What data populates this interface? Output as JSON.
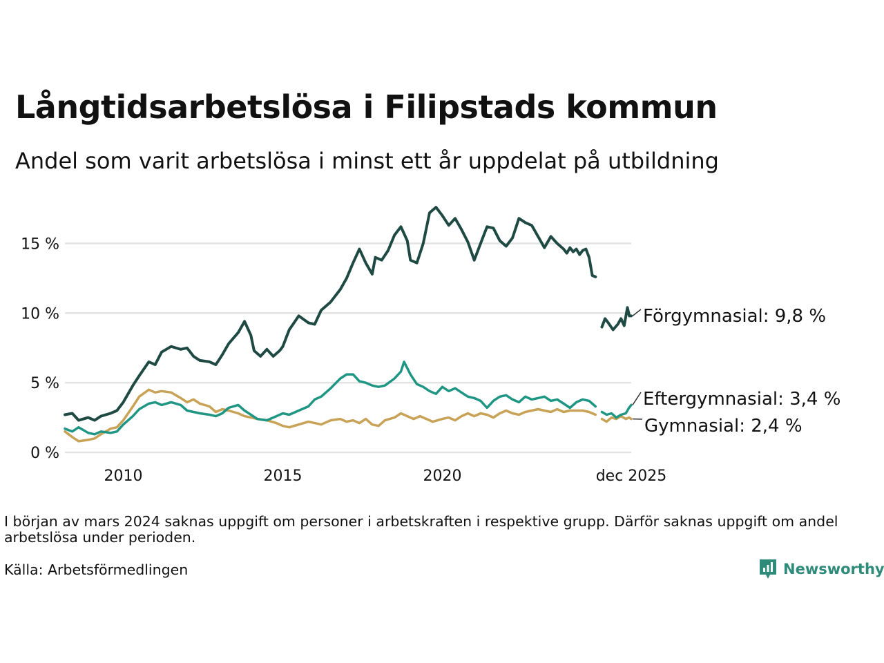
{
  "header": {
    "title": "Långtidsarbetslösa i Filipstads kommun",
    "subtitle": "Andel som varit arbetslösa i minst ett år uppdelat på utbildning"
  },
  "footer": {
    "note": "I början av mars 2024 saknas uppgift om personer i arbetskraften i respektive grupp. Därför saknas uppgift om andel arbetslösa under perioden.",
    "source": "Källa: Arbetsförmedlingen",
    "brand": "Newsworthy"
  },
  "colors": {
    "forgymnasial": "#1f4a43",
    "eftergymnasial": "#1e9683",
    "gymnasial": "#c8a256",
    "grid": "#e3e3e3",
    "brand": "#2e8b7a"
  },
  "chart_data": {
    "type": "line",
    "title": "Långtidsarbetslösa i Filipstads kommun",
    "ylabel": "",
    "xlabel": "",
    "ylim": [
      0,
      18
    ],
    "xlim": [
      2008.17,
      2025.92
    ],
    "gap": [
      2023.9,
      2024.25
    ],
    "y_ticks": [
      {
        "value": 0,
        "label": "0 %"
      },
      {
        "value": 5,
        "label": "5 %"
      },
      {
        "value": 10,
        "label": "10 %"
      },
      {
        "value": 15,
        "label": "15 %"
      }
    ],
    "x_ticks": [
      {
        "value": 2010,
        "label": "2010"
      },
      {
        "value": 2015,
        "label": "2015"
      },
      {
        "value": 2020,
        "label": "2020"
      },
      {
        "value": 2025.92,
        "label": "dec 2025"
      }
    ],
    "series": [
      {
        "name": "Förgymnasial",
        "end_label": "Förgymnasial: 9,8 %",
        "points": [
          [
            2008.17,
            2.7
          ],
          [
            2008.4,
            2.8
          ],
          [
            2008.6,
            2.3
          ],
          [
            2008.9,
            2.5
          ],
          [
            2009.1,
            2.3
          ],
          [
            2009.3,
            2.6
          ],
          [
            2009.6,
            2.8
          ],
          [
            2009.8,
            3.0
          ],
          [
            2010.0,
            3.6
          ],
          [
            2010.3,
            4.8
          ],
          [
            2010.5,
            5.5
          ],
          [
            2010.8,
            6.5
          ],
          [
            2011.0,
            6.3
          ],
          [
            2011.2,
            7.2
          ],
          [
            2011.5,
            7.6
          ],
          [
            2011.8,
            7.4
          ],
          [
            2012.0,
            7.5
          ],
          [
            2012.2,
            6.9
          ],
          [
            2012.4,
            6.6
          ],
          [
            2012.7,
            6.5
          ],
          [
            2012.9,
            6.3
          ],
          [
            2013.1,
            7.0
          ],
          [
            2013.3,
            7.8
          ],
          [
            2013.6,
            8.6
          ],
          [
            2013.8,
            9.4
          ],
          [
            2014.0,
            8.4
          ],
          [
            2014.1,
            7.3
          ],
          [
            2014.3,
            6.9
          ],
          [
            2014.5,
            7.4
          ],
          [
            2014.7,
            6.9
          ],
          [
            2014.9,
            7.3
          ],
          [
            2015.0,
            7.6
          ],
          [
            2015.2,
            8.8
          ],
          [
            2015.5,
            9.8
          ],
          [
            2015.8,
            9.3
          ],
          [
            2016.0,
            9.2
          ],
          [
            2016.2,
            10.2
          ],
          [
            2016.5,
            10.8
          ],
          [
            2016.8,
            11.7
          ],
          [
            2017.0,
            12.5
          ],
          [
            2017.2,
            13.6
          ],
          [
            2017.4,
            14.6
          ],
          [
            2017.6,
            13.6
          ],
          [
            2017.8,
            12.8
          ],
          [
            2017.9,
            14.0
          ],
          [
            2018.1,
            13.8
          ],
          [
            2018.3,
            14.5
          ],
          [
            2018.5,
            15.6
          ],
          [
            2018.7,
            16.2
          ],
          [
            2018.9,
            15.2
          ],
          [
            2019.0,
            13.8
          ],
          [
            2019.2,
            13.6
          ],
          [
            2019.4,
            15.0
          ],
          [
            2019.6,
            17.2
          ],
          [
            2019.8,
            17.6
          ],
          [
            2020.0,
            17.0
          ],
          [
            2020.2,
            16.3
          ],
          [
            2020.4,
            16.8
          ],
          [
            2020.6,
            16.0
          ],
          [
            2020.8,
            15.1
          ],
          [
            2021.0,
            13.8
          ],
          [
            2021.2,
            15.0
          ],
          [
            2021.4,
            16.2
          ],
          [
            2021.6,
            16.1
          ],
          [
            2021.8,
            15.2
          ],
          [
            2022.0,
            14.8
          ],
          [
            2022.2,
            15.4
          ],
          [
            2022.4,
            16.8
          ],
          [
            2022.6,
            16.5
          ],
          [
            2022.8,
            16.3
          ],
          [
            2023.0,
            15.5
          ],
          [
            2023.2,
            14.7
          ],
          [
            2023.4,
            15.5
          ],
          [
            2023.6,
            15.0
          ],
          [
            2023.8,
            14.6
          ],
          [
            2023.9,
            14.3
          ],
          [
            2024.0,
            14.7
          ],
          [
            2024.1,
            14.4
          ],
          [
            2024.2,
            14.6
          ],
          [
            2024.3,
            14.2
          ],
          [
            2024.4,
            14.5
          ],
          [
            2024.5,
            14.6
          ],
          [
            2024.6,
            14.0
          ],
          [
            2024.7,
            12.7
          ],
          [
            2024.8,
            12.6
          ],
          null,
          [
            2025.0,
            9.0
          ],
          [
            2025.1,
            9.6
          ],
          [
            2025.2,
            9.3
          ],
          [
            2025.35,
            8.8
          ],
          [
            2025.5,
            9.2
          ],
          [
            2025.6,
            9.6
          ],
          [
            2025.7,
            9.1
          ],
          [
            2025.8,
            10.4
          ],
          [
            2025.86,
            9.8
          ],
          [
            2025.92,
            9.8
          ]
        ]
      },
      {
        "name": "Eftergymnasial",
        "end_label": "Eftergymnasial: 3,4 %",
        "points": [
          [
            2008.17,
            1.7
          ],
          [
            2008.4,
            1.5
          ],
          [
            2008.6,
            1.8
          ],
          [
            2008.9,
            1.4
          ],
          [
            2009.1,
            1.3
          ],
          [
            2009.3,
            1.5
          ],
          [
            2009.6,
            1.4
          ],
          [
            2009.8,
            1.5
          ],
          [
            2010.0,
            2.0
          ],
          [
            2010.3,
            2.6
          ],
          [
            2010.5,
            3.1
          ],
          [
            2010.8,
            3.5
          ],
          [
            2011.0,
            3.6
          ],
          [
            2011.2,
            3.4
          ],
          [
            2011.5,
            3.6
          ],
          [
            2011.8,
            3.4
          ],
          [
            2012.0,
            3.0
          ],
          [
            2012.2,
            2.9
          ],
          [
            2012.4,
            2.8
          ],
          [
            2012.7,
            2.7
          ],
          [
            2012.9,
            2.6
          ],
          [
            2013.1,
            2.8
          ],
          [
            2013.3,
            3.2
          ],
          [
            2013.6,
            3.4
          ],
          [
            2013.8,
            3.0
          ],
          [
            2014.0,
            2.7
          ],
          [
            2014.2,
            2.4
          ],
          [
            2014.5,
            2.3
          ],
          [
            2014.8,
            2.6
          ],
          [
            2015.0,
            2.8
          ],
          [
            2015.2,
            2.7
          ],
          [
            2015.5,
            3.0
          ],
          [
            2015.8,
            3.3
          ],
          [
            2016.0,
            3.8
          ],
          [
            2016.2,
            4.0
          ],
          [
            2016.5,
            4.6
          ],
          [
            2016.8,
            5.3
          ],
          [
            2017.0,
            5.6
          ],
          [
            2017.2,
            5.6
          ],
          [
            2017.4,
            5.1
          ],
          [
            2017.6,
            5.0
          ],
          [
            2017.8,
            4.8
          ],
          [
            2018.0,
            4.7
          ],
          [
            2018.2,
            4.8
          ],
          [
            2018.5,
            5.3
          ],
          [
            2018.7,
            5.8
          ],
          [
            2018.8,
            6.5
          ],
          [
            2019.0,
            5.6
          ],
          [
            2019.2,
            4.9
          ],
          [
            2019.4,
            4.7
          ],
          [
            2019.6,
            4.4
          ],
          [
            2019.8,
            4.2
          ],
          [
            2020.0,
            4.7
          ],
          [
            2020.2,
            4.4
          ],
          [
            2020.4,
            4.6
          ],
          [
            2020.6,
            4.3
          ],
          [
            2020.8,
            4.0
          ],
          [
            2021.0,
            3.9
          ],
          [
            2021.2,
            3.7
          ],
          [
            2021.4,
            3.2
          ],
          [
            2021.6,
            3.7
          ],
          [
            2021.8,
            4.0
          ],
          [
            2022.0,
            4.1
          ],
          [
            2022.2,
            3.8
          ],
          [
            2022.4,
            3.6
          ],
          [
            2022.6,
            4.0
          ],
          [
            2022.8,
            3.8
          ],
          [
            2023.0,
            3.9
          ],
          [
            2023.2,
            4.0
          ],
          [
            2023.4,
            3.7
          ],
          [
            2023.6,
            3.8
          ],
          [
            2023.8,
            3.5
          ],
          [
            2024.0,
            3.2
          ],
          [
            2024.2,
            3.6
          ],
          [
            2024.4,
            3.8
          ],
          [
            2024.6,
            3.7
          ],
          [
            2024.8,
            3.3
          ],
          null,
          [
            2025.0,
            2.9
          ],
          [
            2025.15,
            2.7
          ],
          [
            2025.3,
            2.8
          ],
          [
            2025.45,
            2.5
          ],
          [
            2025.6,
            2.7
          ],
          [
            2025.75,
            2.8
          ],
          [
            2025.85,
            3.2
          ],
          [
            2025.92,
            3.4
          ]
        ]
      },
      {
        "name": "Gymnasial",
        "end_label": "Gymnasial: 2,4 %",
        "points": [
          [
            2008.17,
            1.5
          ],
          [
            2008.4,
            1.1
          ],
          [
            2008.6,
            0.8
          ],
          [
            2008.9,
            0.9
          ],
          [
            2009.1,
            1.0
          ],
          [
            2009.3,
            1.3
          ],
          [
            2009.6,
            1.7
          ],
          [
            2009.8,
            1.8
          ],
          [
            2010.0,
            2.3
          ],
          [
            2010.3,
            3.3
          ],
          [
            2010.5,
            4.0
          ],
          [
            2010.8,
            4.5
          ],
          [
            2011.0,
            4.3
          ],
          [
            2011.2,
            4.4
          ],
          [
            2011.5,
            4.3
          ],
          [
            2011.8,
            3.9
          ],
          [
            2012.0,
            3.6
          ],
          [
            2012.2,
            3.8
          ],
          [
            2012.4,
            3.5
          ],
          [
            2012.7,
            3.3
          ],
          [
            2012.9,
            2.9
          ],
          [
            2013.1,
            3.1
          ],
          [
            2013.3,
            3.0
          ],
          [
            2013.6,
            2.8
          ],
          [
            2013.8,
            2.6
          ],
          [
            2014.0,
            2.5
          ],
          [
            2014.2,
            2.4
          ],
          [
            2014.5,
            2.3
          ],
          [
            2014.8,
            2.1
          ],
          [
            2015.0,
            1.9
          ],
          [
            2015.2,
            1.8
          ],
          [
            2015.5,
            2.0
          ],
          [
            2015.8,
            2.2
          ],
          [
            2016.0,
            2.1
          ],
          [
            2016.2,
            2.0
          ],
          [
            2016.5,
            2.3
          ],
          [
            2016.8,
            2.4
          ],
          [
            2017.0,
            2.2
          ],
          [
            2017.2,
            2.3
          ],
          [
            2017.4,
            2.1
          ],
          [
            2017.6,
            2.4
          ],
          [
            2017.8,
            2.0
          ],
          [
            2018.0,
            1.9
          ],
          [
            2018.2,
            2.3
          ],
          [
            2018.5,
            2.5
          ],
          [
            2018.7,
            2.8
          ],
          [
            2018.9,
            2.6
          ],
          [
            2019.1,
            2.4
          ],
          [
            2019.3,
            2.6
          ],
          [
            2019.5,
            2.4
          ],
          [
            2019.7,
            2.2
          ],
          [
            2020.0,
            2.4
          ],
          [
            2020.2,
            2.5
          ],
          [
            2020.4,
            2.3
          ],
          [
            2020.6,
            2.6
          ],
          [
            2020.8,
            2.8
          ],
          [
            2021.0,
            2.6
          ],
          [
            2021.2,
            2.8
          ],
          [
            2021.4,
            2.7
          ],
          [
            2021.6,
            2.5
          ],
          [
            2021.8,
            2.8
          ],
          [
            2022.0,
            3.0
          ],
          [
            2022.2,
            2.8
          ],
          [
            2022.4,
            2.7
          ],
          [
            2022.6,
            2.9
          ],
          [
            2022.8,
            3.0
          ],
          [
            2023.0,
            3.1
          ],
          [
            2023.2,
            3.0
          ],
          [
            2023.4,
            2.9
          ],
          [
            2023.6,
            3.1
          ],
          [
            2023.8,
            2.9
          ],
          [
            2024.0,
            3.0
          ],
          [
            2024.2,
            3.0
          ],
          [
            2024.4,
            3.0
          ],
          [
            2024.6,
            2.9
          ],
          [
            2024.8,
            2.7
          ],
          null,
          [
            2025.0,
            2.4
          ],
          [
            2025.15,
            2.2
          ],
          [
            2025.3,
            2.5
          ],
          [
            2025.45,
            2.4
          ],
          [
            2025.6,
            2.6
          ],
          [
            2025.75,
            2.4
          ],
          [
            2025.85,
            2.5
          ],
          [
            2025.92,
            2.4
          ]
        ]
      }
    ]
  }
}
